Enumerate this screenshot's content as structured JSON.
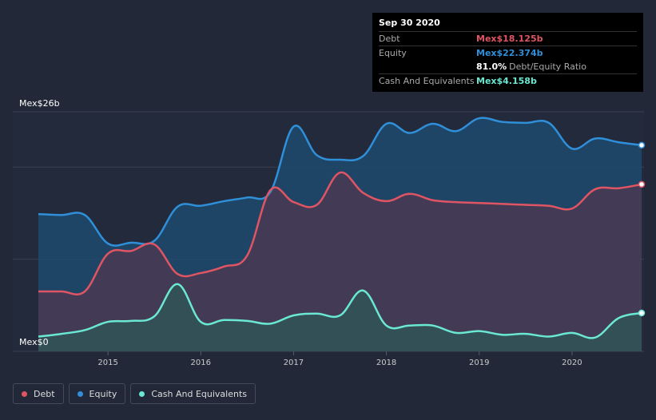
{
  "tooltip": {
    "date": "Sep 30 2020",
    "debt_label": "Debt",
    "debt_value": "Mex$18.125b",
    "equity_label": "Equity",
    "equity_value": "Mex$22.374b",
    "ratio_value": "81.0%",
    "ratio_label": "Debt/Equity Ratio",
    "cash_label": "Cash And Equivalents",
    "cash_value": "Mex$4.158b"
  },
  "legend": {
    "debt": "Debt",
    "equity": "Equity",
    "cash": "Cash And Equivalents"
  },
  "colors": {
    "debt": "#e05563",
    "equity": "#2f8fd8",
    "cash": "#6ae8d1"
  },
  "chart_data": {
    "type": "area",
    "title": "",
    "y_top_label": "Mex$26b",
    "y_bottom_label": "Mex$0",
    "ylim": [
      0,
      26
    ],
    "xlim": [
      2014.25,
      2020.75
    ],
    "x_ticks": [
      2015,
      2016,
      2017,
      2018,
      2019,
      2020
    ],
    "x_tick_labels": [
      "2015",
      "2016",
      "2017",
      "2018",
      "2019",
      "2020"
    ],
    "series": [
      {
        "name": "Equity",
        "key": "equity",
        "x": [
          2014.25,
          2014.5,
          2014.75,
          2015.0,
          2015.25,
          2015.5,
          2015.75,
          2016.0,
          2016.25,
          2016.5,
          2016.75,
          2017.0,
          2017.25,
          2017.5,
          2017.75,
          2018.0,
          2018.25,
          2018.5,
          2018.75,
          2019.0,
          2019.25,
          2019.5,
          2019.75,
          2020.0,
          2020.25,
          2020.5,
          2020.75
        ],
        "values": [
          14.9,
          14.8,
          14.8,
          11.7,
          11.8,
          12.0,
          15.7,
          15.8,
          16.3,
          16.7,
          17.3,
          24.4,
          21.3,
          20.8,
          21.2,
          24.7,
          23.7,
          24.7,
          23.9,
          25.3,
          24.9,
          24.8,
          24.8,
          22.0,
          23.1,
          22.7,
          22.374
        ]
      },
      {
        "name": "Debt",
        "key": "debt",
        "x": [
          2014.25,
          2014.5,
          2014.75,
          2015.0,
          2015.25,
          2015.5,
          2015.75,
          2016.0,
          2016.25,
          2016.5,
          2016.75,
          2017.0,
          2017.25,
          2017.5,
          2017.75,
          2018.0,
          2018.25,
          2018.5,
          2018.75,
          2019.0,
          2019.25,
          2019.5,
          2019.75,
          2020.0,
          2020.25,
          2020.5,
          2020.75
        ],
        "values": [
          6.5,
          6.5,
          6.5,
          10.6,
          10.9,
          11.6,
          8.4,
          8.5,
          9.2,
          10.4,
          17.5,
          16.2,
          15.9,
          19.4,
          17.2,
          16.3,
          17.1,
          16.4,
          16.2,
          16.1,
          16.0,
          15.9,
          15.8,
          15.5,
          17.6,
          17.7,
          18.125
        ]
      },
      {
        "name": "Cash And Equivalents",
        "key": "cash",
        "x": [
          2014.25,
          2014.5,
          2014.75,
          2015.0,
          2015.25,
          2015.5,
          2015.75,
          2016.0,
          2016.25,
          2016.5,
          2016.75,
          2017.0,
          2017.25,
          2017.5,
          2017.75,
          2018.0,
          2018.25,
          2018.5,
          2018.75,
          2019.0,
          2019.25,
          2019.5,
          2019.75,
          2020.0,
          2020.25,
          2020.5,
          2020.75
        ],
        "values": [
          1.6,
          1.9,
          2.3,
          3.2,
          3.3,
          3.8,
          7.3,
          3.2,
          3.4,
          3.3,
          3.0,
          3.9,
          4.1,
          3.9,
          6.6,
          2.8,
          2.8,
          2.8,
          2.0,
          2.2,
          1.8,
          1.9,
          1.6,
          2.0,
          1.5,
          3.6,
          4.158
        ]
      }
    ]
  }
}
